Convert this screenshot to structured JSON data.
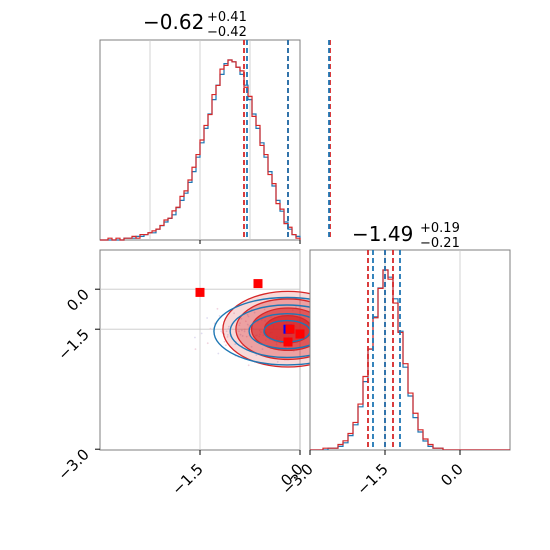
{
  "colors": {
    "series_a": "#1f77b4",
    "series_b": "#d62728",
    "marker_a": "#0000ff",
    "marker_b": "#ff0000",
    "grid": "#c8c8c8",
    "frame": "#7f7f7f"
  },
  "chart_data": [
    {
      "type": "histogram",
      "panel": "marginal-x",
      "title": {
        "value": "−0.62",
        "upper": "+0.41",
        "lower": "−0.42"
      },
      "xlim": [
        -2.5,
        -0.5
      ],
      "grid": true,
      "quantile_lines": {
        "series_a": [
          -1.03,
          -0.62,
          -0.21
        ],
        "series_b": [
          -1.06,
          -0.62,
          -0.2
        ]
      },
      "bins": {
        "start": -2.5,
        "width": 0.04
      },
      "series": [
        {
          "color_key": "series_a",
          "counts": [
            0,
            0,
            0,
            0,
            0,
            0,
            1,
            1,
            1,
            2,
            2,
            3,
            4,
            4,
            6,
            8,
            10,
            12,
            14,
            18,
            22,
            26,
            32,
            38,
            46,
            54,
            62,
            70,
            78,
            86,
            92,
            98,
            100,
            99,
            96,
            92,
            86,
            78,
            70,
            62,
            54,
            46,
            38,
            30,
            22,
            16,
            10,
            6,
            3,
            2
          ]
        },
        {
          "color_key": "series_b",
          "counts": [
            0,
            0,
            1,
            0,
            1,
            0,
            1,
            1,
            2,
            1,
            3,
            3,
            4,
            5,
            6,
            8,
            11,
            12,
            16,
            18,
            24,
            27,
            33,
            40,
            47,
            55,
            63,
            69,
            80,
            85,
            94,
            96,
            99,
            98,
            95,
            93,
            84,
            79,
            68,
            63,
            52,
            47,
            36,
            31,
            20,
            17,
            9,
            7,
            3,
            1
          ]
        }
      ]
    },
    {
      "type": "contour",
      "panel": "joint",
      "xlim": [
        -2.5,
        -0.5
      ],
      "ylim": [
        -3.0,
        -0.5
      ],
      "grid": true,
      "xticks": [
        "−1.5",
        "0.0"
      ],
      "yticks": [
        "0.0",
        "−1.5",
        "−3.0"
      ],
      "series": [
        {
          "color_key": "series_a",
          "center": [
            -0.62,
            -1.49
          ],
          "spread": [
            0.41,
            0.2
          ]
        },
        {
          "color_key": "series_b",
          "center": [
            -0.62,
            -1.49
          ],
          "spread": [
            0.42,
            0.21
          ]
        }
      ],
      "points": [
        {
          "color_key": "marker_a",
          "x": -0.62,
          "y": -1.49
        },
        {
          "color_key": "marker_b",
          "x": -0.92,
          "y": -0.92
        },
        {
          "color_key": "marker_b",
          "x": -1.5,
          "y": -1.03
        },
        {
          "color_key": "marker_b",
          "x": -0.6,
          "y": -1.49
        },
        {
          "color_key": "marker_b",
          "x": -0.62,
          "y": -1.65
        },
        {
          "color_key": "marker_b",
          "x": -0.35,
          "y": -2.05
        },
        {
          "color_key": "marker_b",
          "x": -0.5,
          "y": -1.55
        }
      ]
    },
    {
      "type": "histogram",
      "panel": "marginal-y",
      "title": {
        "value": "−1.49",
        "upper": "+0.19",
        "lower": "−0.21"
      },
      "xlim": [
        -3.0,
        -0.5
      ],
      "grid": true,
      "xticks": [
        "−3.0",
        "−1.5",
        "0.0"
      ],
      "quantile_lines": {
        "series_a": [
          -1.69,
          -1.49,
          -1.3
        ],
        "series_b": [
          -1.72,
          -1.49,
          -1.28
        ]
      },
      "bins": {
        "start": -3.0,
        "width": 0.05
      },
      "series": [
        {
          "color_key": "series_a",
          "counts": [
            0,
            0,
            0,
            0,
            0,
            0,
            0,
            0,
            0,
            0,
            0,
            1,
            1,
            2,
            4,
            8,
            14,
            24,
            38,
            56,
            74,
            90,
            100,
            96,
            84,
            66,
            46,
            30,
            18,
            10,
            5,
            2,
            1,
            1,
            0,
            0,
            0,
            0,
            0,
            0,
            0,
            0,
            0,
            0,
            0,
            0,
            0,
            0,
            0,
            0
          ]
        },
        {
          "color_key": "series_b",
          "counts": [
            0,
            0,
            0,
            0,
            0,
            0,
            0,
            0,
            0,
            0,
            1,
            1,
            1,
            3,
            5,
            9,
            15,
            25,
            40,
            55,
            72,
            88,
            98,
            93,
            80,
            64,
            47,
            31,
            20,
            11,
            6,
            3,
            1,
            1,
            0,
            0,
            0,
            0,
            0,
            0,
            0,
            0,
            0,
            0,
            0,
            0,
            0,
            0,
            0,
            0
          ]
        }
      ]
    }
  ]
}
